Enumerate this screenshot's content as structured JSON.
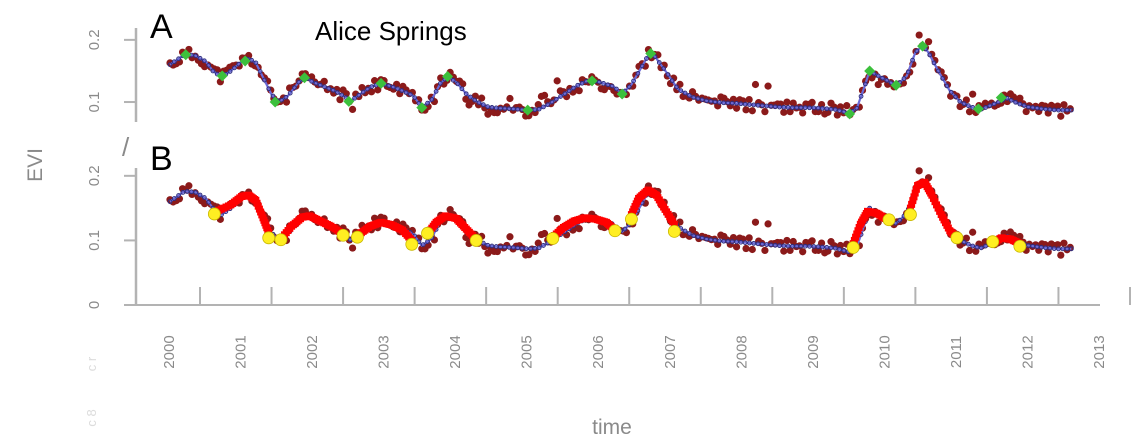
{
  "title": "Alice Springs",
  "panels": [
    {
      "letter": "A",
      "y_ticks": [
        "0.1",
        "0.2"
      ]
    },
    {
      "letter": "B",
      "y_ticks": [
        "0",
        "0.1",
        "0.2"
      ]
    }
  ],
  "axis": {
    "ylabel": "EVI",
    "xlabel": "time",
    "break_mark": "/"
  },
  "faint_ticks": [
    "c r",
    "c 8"
  ],
  "colors": {
    "observed": "#8b1a1a",
    "fitted_line": "#6a6ad8",
    "fitted_marker": "#2e2e80",
    "green_nodes": "#3cc03c",
    "segment_fit": "#ff0000",
    "yellow_nodes": "#ffee22",
    "axis": "#b3b3b3"
  },
  "chart_data": {
    "type": "scatter",
    "x_ticks": [
      2000,
      2001,
      2002,
      2003,
      2004,
      2005,
      2006,
      2007,
      2008,
      2009,
      2010,
      2011,
      2012,
      2013
    ],
    "xlim": [
      1999.7,
      2013.2
    ],
    "xlabel": "time",
    "ylabel": "EVI",
    "panels": [
      {
        "id": "A",
        "ylim": [
          0.055,
          0.24
        ],
        "y_ticks": [
          0.1,
          0.2
        ],
        "fitted_curve": [
          [
            2000.0,
            0.16
          ],
          [
            2000.1,
            0.168
          ],
          [
            2000.2,
            0.176
          ],
          [
            2000.35,
            0.175
          ],
          [
            2000.5,
            0.165
          ],
          [
            2000.6,
            0.15
          ],
          [
            2000.72,
            0.14
          ],
          [
            2000.85,
            0.15
          ],
          [
            2001.0,
            0.165
          ],
          [
            2001.1,
            0.17
          ],
          [
            2001.2,
            0.163
          ],
          [
            2001.3,
            0.14
          ],
          [
            2001.42,
            0.112
          ],
          [
            2001.52,
            0.1
          ],
          [
            2001.65,
            0.11
          ],
          [
            2001.8,
            0.132
          ],
          [
            2001.9,
            0.139
          ],
          [
            2002.0,
            0.132
          ],
          [
            2002.15,
            0.125
          ],
          [
            2002.3,
            0.118
          ],
          [
            2002.45,
            0.108
          ],
          [
            2002.52,
            0.101
          ],
          [
            2002.65,
            0.112
          ],
          [
            2002.8,
            0.124
          ],
          [
            2002.95,
            0.13
          ],
          [
            2003.1,
            0.125
          ],
          [
            2003.25,
            0.118
          ],
          [
            2003.4,
            0.11
          ],
          [
            2003.52,
            0.092
          ],
          [
            2003.65,
            0.102
          ],
          [
            2003.78,
            0.13
          ],
          [
            2003.88,
            0.141
          ],
          [
            2004.0,
            0.132
          ],
          [
            2004.15,
            0.112
          ],
          [
            2004.3,
            0.1
          ],
          [
            2004.45,
            0.092
          ],
          [
            2004.6,
            0.09
          ],
          [
            2004.8,
            0.089
          ],
          [
            2005.0,
            0.087
          ],
          [
            2005.15,
            0.088
          ],
          [
            2005.3,
            0.097
          ],
          [
            2005.5,
            0.112
          ],
          [
            2005.7,
            0.127
          ],
          [
            2005.85,
            0.135
          ],
          [
            2006.0,
            0.132
          ],
          [
            2006.2,
            0.125
          ],
          [
            2006.32,
            0.113
          ],
          [
            2006.45,
            0.128
          ],
          [
            2006.6,
            0.158
          ],
          [
            2006.7,
            0.178
          ],
          [
            2006.78,
            0.173
          ],
          [
            2006.95,
            0.146
          ],
          [
            2007.1,
            0.121
          ],
          [
            2007.3,
            0.108
          ],
          [
            2007.5,
            0.102
          ],
          [
            2007.7,
            0.099
          ],
          [
            2007.9,
            0.098
          ],
          [
            2008.1,
            0.096
          ],
          [
            2008.3,
            0.094
          ],
          [
            2008.5,
            0.092
          ],
          [
            2008.7,
            0.091
          ],
          [
            2008.9,
            0.091
          ],
          [
            2009.1,
            0.09
          ],
          [
            2009.3,
            0.088
          ],
          [
            2009.5,
            0.082
          ],
          [
            2009.6,
            0.09
          ],
          [
            2009.7,
            0.122
          ],
          [
            2009.78,
            0.15
          ],
          [
            2009.9,
            0.142
          ],
          [
            2010.05,
            0.133
          ],
          [
            2010.15,
            0.126
          ],
          [
            2010.3,
            0.142
          ],
          [
            2010.42,
            0.18
          ],
          [
            2010.52,
            0.191
          ],
          [
            2010.6,
            0.18
          ],
          [
            2010.75,
            0.148
          ],
          [
            2010.9,
            0.118
          ],
          [
            2011.05,
            0.1
          ],
          [
            2011.2,
            0.092
          ],
          [
            2011.33,
            0.088
          ],
          [
            2011.5,
            0.096
          ],
          [
            2011.7,
            0.106
          ],
          [
            2011.85,
            0.098
          ],
          [
            2012.0,
            0.092
          ],
          [
            2012.2,
            0.089
          ],
          [
            2012.4,
            0.087
          ],
          [
            2012.6,
            0.087
          ]
        ],
        "green_nodes": [
          [
            2000.22,
            0.176
          ],
          [
            2000.73,
            0.142
          ],
          [
            2001.05,
            0.166
          ],
          [
            2001.47,
            0.1
          ],
          [
            2001.88,
            0.139
          ],
          [
            2002.5,
            0.101
          ],
          [
            2002.95,
            0.13
          ],
          [
            2003.52,
            0.091
          ],
          [
            2003.88,
            0.141
          ],
          [
            2005.0,
            0.087
          ],
          [
            2005.9,
            0.134
          ],
          [
            2006.32,
            0.113
          ],
          [
            2006.72,
            0.178
          ],
          [
            2009.5,
            0.081
          ],
          [
            2009.78,
            0.15
          ],
          [
            2010.15,
            0.127
          ],
          [
            2010.52,
            0.19
          ],
          [
            2011.3,
            0.089
          ],
          [
            2011.62,
            0.107
          ]
        ]
      },
      {
        "id": "B",
        "ylim": [
          0.0,
          0.24
        ],
        "y_ticks": [
          0,
          0.1,
          0.2
        ],
        "fitted_curve": [
          [
            2000.0,
            0.16
          ],
          [
            2000.1,
            0.168
          ],
          [
            2000.2,
            0.176
          ],
          [
            2000.35,
            0.175
          ],
          [
            2000.5,
            0.165
          ],
          [
            2000.6,
            0.15
          ],
          [
            2000.72,
            0.14
          ],
          [
            2000.85,
            0.15
          ],
          [
            2001.0,
            0.165
          ],
          [
            2001.1,
            0.17
          ],
          [
            2001.2,
            0.163
          ],
          [
            2001.3,
            0.14
          ],
          [
            2001.42,
            0.112
          ],
          [
            2001.52,
            0.1
          ],
          [
            2001.65,
            0.11
          ],
          [
            2001.8,
            0.132
          ],
          [
            2001.9,
            0.139
          ],
          [
            2002.0,
            0.132
          ],
          [
            2002.15,
            0.125
          ],
          [
            2002.3,
            0.118
          ],
          [
            2002.45,
            0.108
          ],
          [
            2002.52,
            0.101
          ],
          [
            2002.65,
            0.112
          ],
          [
            2002.8,
            0.124
          ],
          [
            2002.95,
            0.13
          ],
          [
            2003.1,
            0.125
          ],
          [
            2003.25,
            0.118
          ],
          [
            2003.4,
            0.11
          ],
          [
            2003.52,
            0.092
          ],
          [
            2003.65,
            0.102
          ],
          [
            2003.78,
            0.13
          ],
          [
            2003.88,
            0.141
          ],
          [
            2004.0,
            0.132
          ],
          [
            2004.15,
            0.112
          ],
          [
            2004.3,
            0.1
          ],
          [
            2004.45,
            0.092
          ],
          [
            2004.6,
            0.09
          ],
          [
            2004.8,
            0.089
          ],
          [
            2005.0,
            0.087
          ],
          [
            2005.15,
            0.088
          ],
          [
            2005.3,
            0.097
          ],
          [
            2005.5,
            0.112
          ],
          [
            2005.7,
            0.127
          ],
          [
            2005.85,
            0.135
          ],
          [
            2006.0,
            0.132
          ],
          [
            2006.2,
            0.125
          ],
          [
            2006.32,
            0.113
          ],
          [
            2006.45,
            0.128
          ],
          [
            2006.6,
            0.158
          ],
          [
            2006.7,
            0.178
          ],
          [
            2006.78,
            0.173
          ],
          [
            2006.95,
            0.146
          ],
          [
            2007.1,
            0.121
          ],
          [
            2007.3,
            0.108
          ],
          [
            2007.5,
            0.102
          ],
          [
            2007.7,
            0.099
          ],
          [
            2007.9,
            0.098
          ],
          [
            2008.1,
            0.096
          ],
          [
            2008.3,
            0.094
          ],
          [
            2008.5,
            0.092
          ],
          [
            2008.7,
            0.091
          ],
          [
            2008.9,
            0.091
          ],
          [
            2009.1,
            0.09
          ],
          [
            2009.3,
            0.088
          ],
          [
            2009.5,
            0.082
          ],
          [
            2009.6,
            0.09
          ],
          [
            2009.7,
            0.122
          ],
          [
            2009.78,
            0.15
          ],
          [
            2009.9,
            0.142
          ],
          [
            2010.05,
            0.133
          ],
          [
            2010.15,
            0.126
          ],
          [
            2010.3,
            0.142
          ],
          [
            2010.42,
            0.18
          ],
          [
            2010.52,
            0.191
          ],
          [
            2010.6,
            0.18
          ],
          [
            2010.75,
            0.148
          ],
          [
            2010.9,
            0.118
          ],
          [
            2011.05,
            0.1
          ],
          [
            2011.2,
            0.092
          ],
          [
            2011.33,
            0.088
          ],
          [
            2011.5,
            0.096
          ],
          [
            2011.7,
            0.106
          ],
          [
            2011.85,
            0.098
          ],
          [
            2012.0,
            0.092
          ],
          [
            2012.2,
            0.089
          ],
          [
            2012.4,
            0.087
          ],
          [
            2012.6,
            0.087
          ]
        ],
        "red_segments": [
          [
            [
              2000.65,
              0.145
            ],
            [
              2000.85,
              0.155
            ],
            [
              2001.0,
              0.168
            ],
            [
              2001.1,
              0.17
            ],
            [
              2001.2,
              0.162
            ],
            [
              2001.3,
              0.135
            ],
            [
              2001.38,
              0.112
            ]
          ],
          [
            [
              2001.55,
              0.102
            ],
            [
              2001.7,
              0.122
            ],
            [
              2001.85,
              0.136
            ],
            [
              2001.95,
              0.138
            ],
            [
              2002.1,
              0.13
            ],
            [
              2002.25,
              0.122
            ],
            [
              2002.42,
              0.11
            ]
          ],
          [
            [
              2002.65,
              0.11
            ],
            [
              2002.8,
              0.122
            ],
            [
              2002.95,
              0.128
            ],
            [
              2003.1,
              0.124
            ],
            [
              2003.25,
              0.116
            ],
            [
              2003.38,
              0.1
            ]
          ],
          [
            [
              2003.6,
              0.11
            ],
            [
              2003.72,
              0.128
            ],
            [
              2003.85,
              0.138
            ],
            [
              2004.0,
              0.134
            ],
            [
              2004.12,
              0.12
            ],
            [
              2004.25,
              0.105
            ]
          ],
          [
            [
              2005.35,
              0.105
            ],
            [
              2005.5,
              0.12
            ],
            [
              2005.65,
              0.13
            ],
            [
              2005.8,
              0.135
            ],
            [
              2005.95,
              0.133
            ],
            [
              2006.1,
              0.128
            ],
            [
              2006.2,
              0.118
            ]
          ],
          [
            [
              2006.45,
              0.14
            ],
            [
              2006.55,
              0.165
            ],
            [
              2006.68,
              0.178
            ],
            [
              2006.8,
              0.17
            ],
            [
              2006.92,
              0.148
            ],
            [
              2007.05,
              0.125
            ]
          ],
          [
            [
              2009.55,
              0.095
            ],
            [
              2009.65,
              0.125
            ],
            [
              2009.75,
              0.145
            ],
            [
              2009.88,
              0.142
            ],
            [
              2010.0,
              0.134
            ]
          ],
          [
            [
              2010.35,
              0.15
            ],
            [
              2010.45,
              0.185
            ],
            [
              2010.55,
              0.19
            ],
            [
              2010.65,
              0.17
            ],
            [
              2010.78,
              0.14
            ],
            [
              2010.9,
              0.115
            ],
            [
              2011.0,
              0.104
            ]
          ],
          [
            [
              2011.5,
              0.096
            ],
            [
              2011.62,
              0.104
            ],
            [
              2011.75,
              0.102
            ],
            [
              2011.88,
              0.095
            ]
          ]
        ],
        "yellow_nodes": [
          [
            2000.62,
            0.141
          ],
          [
            2001.38,
            0.104
          ],
          [
            2001.55,
            0.101
          ],
          [
            2002.42,
            0.108
          ],
          [
            2002.62,
            0.105
          ],
          [
            2003.38,
            0.094
          ],
          [
            2003.6,
            0.111
          ],
          [
            2004.28,
            0.1
          ],
          [
            2005.35,
            0.103
          ],
          [
            2006.22,
            0.115
          ],
          [
            2006.45,
            0.133
          ],
          [
            2007.05,
            0.114
          ],
          [
            2009.55,
            0.089
          ],
          [
            2010.05,
            0.132
          ],
          [
            2010.35,
            0.14
          ],
          [
            2011.0,
            0.104
          ],
          [
            2011.5,
            0.098
          ],
          [
            2011.88,
            0.091
          ]
        ]
      }
    ]
  }
}
